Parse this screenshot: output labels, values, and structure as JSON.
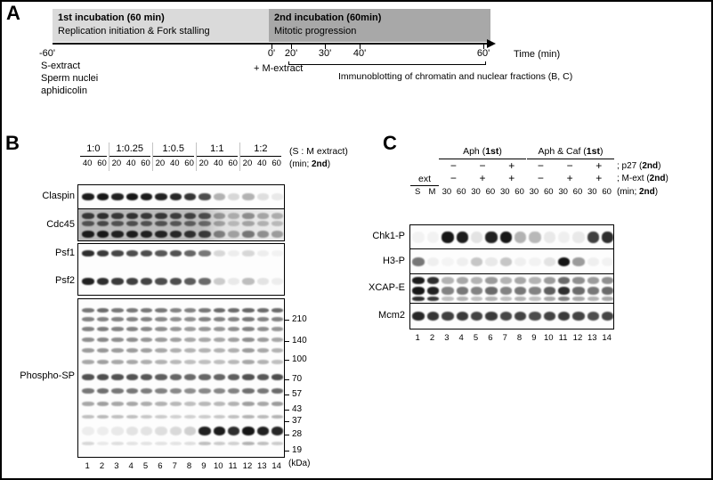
{
  "figure": {
    "panelA_label": "A",
    "panelB_label": "B",
    "panelC_label": "C"
  },
  "panelA": {
    "box1": {
      "title": "1st incubation (60 min)",
      "subtitle": "Replication initiation & Fork stalling"
    },
    "box2": {
      "title": "2nd incubation (60min)",
      "subtitle": "Mitotic progression"
    },
    "ticks": [
      "-60'",
      "0'",
      "20'",
      "30'",
      "40'",
      "60'"
    ],
    "time_axis": "Time (min)",
    "left_notes": [
      "S-extract",
      "Sperm nuclei",
      "aphidicolin"
    ],
    "m_extract": "+ M-extract",
    "immunoblot_note": "Immunoblotting of chromatin and nuclear fractions (B, C)"
  },
  "panelB": {
    "ratio_groups": [
      {
        "label": "1:0",
        "lanes": 2
      },
      {
        "label": "1:0.25",
        "lanes": 3
      },
      {
        "label": "1:0.5",
        "lanes": 3
      },
      {
        "label": "1:1",
        "lanes": 3
      },
      {
        "label": "1:2",
        "lanes": 3
      }
    ],
    "ratio_caption": "(S : M extract)",
    "times": [
      "40",
      "60",
      "20",
      "40",
      "60",
      "20",
      "40",
      "60",
      "20",
      "40",
      "60",
      "20",
      "40",
      "60"
    ],
    "min_caption": {
      "pre": "(min; ",
      "bold": "2nd",
      "post": ")"
    },
    "blot_labels": [
      "Claspin",
      "Cdc45",
      "Psf1",
      "Psf2",
      "Phospho-SP"
    ],
    "mw_markers": [
      "210",
      "140",
      "100",
      "70",
      "57",
      "43",
      "37",
      "28",
      "19"
    ],
    "kda_caption": "(kDa)",
    "lane_numbers": [
      "1",
      "2",
      "3",
      "4",
      "5",
      "6",
      "7",
      "8",
      "9",
      "10",
      "11",
      "12",
      "13",
      "14"
    ],
    "bands": {
      "claspin": {
        "rows": [
          {
            "t": 9,
            "h": 8,
            "v": [
              0.92,
              0.95,
              0.9,
              0.95,
              0.93,
              0.9,
              0.88,
              0.82,
              0.72,
              0.3,
              0.15,
              0.3,
              0.12,
              0.08
            ]
          }
        ]
      },
      "cdc45": {
        "rows": [
          {
            "t": 4,
            "h": 7,
            "v": [
              0.75,
              0.8,
              0.75,
              0.78,
              0.75,
              0.75,
              0.72,
              0.7,
              0.65,
              0.35,
              0.25,
              0.4,
              0.3,
              0.28
            ]
          },
          {
            "t": 13,
            "h": 6,
            "v": [
              0.6,
              0.65,
              0.6,
              0.62,
              0.6,
              0.6,
              0.58,
              0.55,
              0.5,
              0.3,
              0.2,
              0.3,
              0.25,
              0.22
            ]
          },
          {
            "t": 24,
            "h": 8,
            "v": [
              0.9,
              0.92,
              0.88,
              0.9,
              0.88,
              0.86,
              0.84,
              0.8,
              0.75,
              0.45,
              0.3,
              0.5,
              0.4,
              0.35
            ]
          }
        ]
      },
      "psf": {
        "rows": [
          {
            "t": 7,
            "h": 7,
            "v": [
              0.85,
              0.8,
              0.75,
              0.72,
              0.72,
              0.68,
              0.7,
              0.62,
              0.55,
              0.15,
              0.06,
              0.15,
              0.06,
              0.04
            ]
          },
          {
            "t": 38,
            "h": 8,
            "v": [
              0.9,
              0.85,
              0.8,
              0.78,
              0.76,
              0.72,
              0.72,
              0.66,
              0.6,
              0.2,
              0.08,
              0.26,
              0.1,
              0.06
            ]
          }
        ]
      },
      "phospho": {
        "rows": [
          {
            "t": 10,
            "h": 5,
            "v": [
              0.55,
              0.6,
              0.55,
              0.55,
              0.55,
              0.55,
              0.5,
              0.5,
              0.55,
              0.6,
              0.6,
              0.62,
              0.6,
              0.6
            ]
          },
          {
            "t": 20,
            "h": 5,
            "v": [
              0.5,
              0.5,
              0.5,
              0.5,
              0.5,
              0.48,
              0.45,
              0.45,
              0.5,
              0.5,
              0.5,
              0.55,
              0.5,
              0.5
            ]
          },
          {
            "t": 31,
            "h": 5,
            "v": [
              0.5,
              0.52,
              0.5,
              0.5,
              0.48,
              0.45,
              0.42,
              0.4,
              0.42,
              0.42,
              0.45,
              0.5,
              0.45,
              0.42
            ]
          },
          {
            "t": 43,
            "h": 5,
            "v": [
              0.45,
              0.48,
              0.45,
              0.45,
              0.42,
              0.4,
              0.38,
              0.35,
              0.35,
              0.35,
              0.38,
              0.45,
              0.4,
              0.35
            ]
          },
          {
            "t": 55,
            "h": 5,
            "v": [
              0.4,
              0.42,
              0.4,
              0.4,
              0.38,
              0.35,
              0.32,
              0.3,
              0.3,
              0.3,
              0.32,
              0.4,
              0.35,
              0.3
            ]
          },
          {
            "t": 68,
            "h": 5,
            "v": [
              0.35,
              0.38,
              0.35,
              0.35,
              0.32,
              0.3,
              0.28,
              0.25,
              0.25,
              0.25,
              0.28,
              0.35,
              0.3,
              0.25
            ]
          },
          {
            "t": 84,
            "h": 7,
            "v": [
              0.7,
              0.72,
              0.7,
              0.7,
              0.68,
              0.65,
              0.62,
              0.6,
              0.62,
              0.62,
              0.65,
              0.7,
              0.68,
              0.72
            ]
          },
          {
            "t": 100,
            "h": 6,
            "v": [
              0.55,
              0.58,
              0.55,
              0.55,
              0.52,
              0.5,
              0.48,
              0.45,
              0.48,
              0.48,
              0.5,
              0.58,
              0.55,
              0.6
            ]
          },
          {
            "t": 115,
            "h": 5,
            "v": [
              0.35,
              0.38,
              0.35,
              0.35,
              0.32,
              0.3,
              0.28,
              0.25,
              0.28,
              0.28,
              0.3,
              0.38,
              0.35,
              0.4
            ]
          },
          {
            "t": 130,
            "h": 4,
            "v": [
              0.25,
              0.28,
              0.25,
              0.25,
              0.22,
              0.2,
              0.18,
              0.18,
              0.2,
              0.22,
              0.25,
              0.3,
              0.28,
              0.3
            ]
          },
          {
            "t": 143,
            "h": 10,
            "v": [
              0.06,
              0.06,
              0.08,
              0.1,
              0.1,
              0.12,
              0.14,
              0.18,
              0.9,
              0.92,
              0.85,
              0.95,
              0.9,
              0.88
            ]
          },
          {
            "t": 160,
            "h": 4,
            "v": [
              0.15,
              0.08,
              0.12,
              0.1,
              0.1,
              0.1,
              0.1,
              0.12,
              0.25,
              0.2,
              0.18,
              0.3,
              0.25,
              0.2
            ]
          }
        ]
      }
    }
  },
  "panelC": {
    "groups": [
      {
        "pre": "Aph (",
        "bold": "1st",
        "post": ")"
      },
      {
        "pre": "Aph & Caf (",
        "bold": "1st",
        "post": ")"
      }
    ],
    "p27_signs": [
      "−",
      "−",
      "+",
      "−",
      "−",
      "+"
    ],
    "p27_caption": {
      "pre": "; p27 (",
      "bold": "2nd",
      "post": ")"
    },
    "mext_signs": [
      "−",
      "+",
      "+",
      "−",
      "+",
      "+"
    ],
    "mext_caption": {
      "pre": "; M-ext (",
      "bold": "2nd",
      "post": ")"
    },
    "ext_label": "ext",
    "lane_headers": [
      "S",
      "M",
      "30",
      "60",
      "30",
      "60",
      "30",
      "60",
      "30",
      "60",
      "30",
      "60",
      "30",
      "60"
    ],
    "min_caption": {
      "pre": "(min; ",
      "bold": "2nd",
      "post": ")"
    },
    "blot_labels": [
      "Chk1-P",
      "H3-P",
      "XCAP-E",
      "Mcm2"
    ],
    "lane_numbers": [
      "1",
      "2",
      "3",
      "4",
      "5",
      "6",
      "7",
      "8",
      "9",
      "10",
      "11",
      "12",
      "13",
      "14"
    ],
    "bands": {
      "chk1": {
        "rows": [
          {
            "t": 7,
            "h": 13,
            "v": [
              0.04,
              0.04,
              0.95,
              0.92,
              0.1,
              0.9,
              0.95,
              0.3,
              0.28,
              0.08,
              0.05,
              0.08,
              0.78,
              0.85
            ]
          }
        ]
      },
      "h3p": {
        "rows": [
          {
            "t": 9,
            "h": 10,
            "v": [
              0.55,
              0.05,
              0.03,
              0.05,
              0.22,
              0.08,
              0.22,
              0.05,
              0.04,
              0.1,
              0.95,
              0.4,
              0.05,
              0.04
            ]
          }
        ]
      },
      "xcap": {
        "rows": [
          {
            "t": 3,
            "h": 8,
            "v": [
              0.92,
              0.85,
              0.3,
              0.35,
              0.3,
              0.4,
              0.3,
              0.35,
              0.3,
              0.4,
              0.6,
              0.45,
              0.4,
              0.45
            ]
          },
          {
            "t": 14,
            "h": 9,
            "v": [
              0.95,
              0.9,
              0.5,
              0.55,
              0.5,
              0.6,
              0.5,
              0.55,
              0.5,
              0.65,
              0.85,
              0.6,
              0.55,
              0.6
            ]
          },
          {
            "t": 25,
            "h": 5,
            "v": [
              0.85,
              0.8,
              0.25,
              0.3,
              0.25,
              0.3,
              0.25,
              0.3,
              0.25,
              0.35,
              0.5,
              0.35,
              0.3,
              0.35
            ]
          }
        ]
      },
      "mcm2": {
        "rows": [
          {
            "t": 9,
            "h": 10,
            "v": [
              0.88,
              0.82,
              0.78,
              0.8,
              0.76,
              0.8,
              0.75,
              0.76,
              0.72,
              0.76,
              0.8,
              0.76,
              0.72,
              0.75
            ]
          }
        ]
      }
    }
  }
}
